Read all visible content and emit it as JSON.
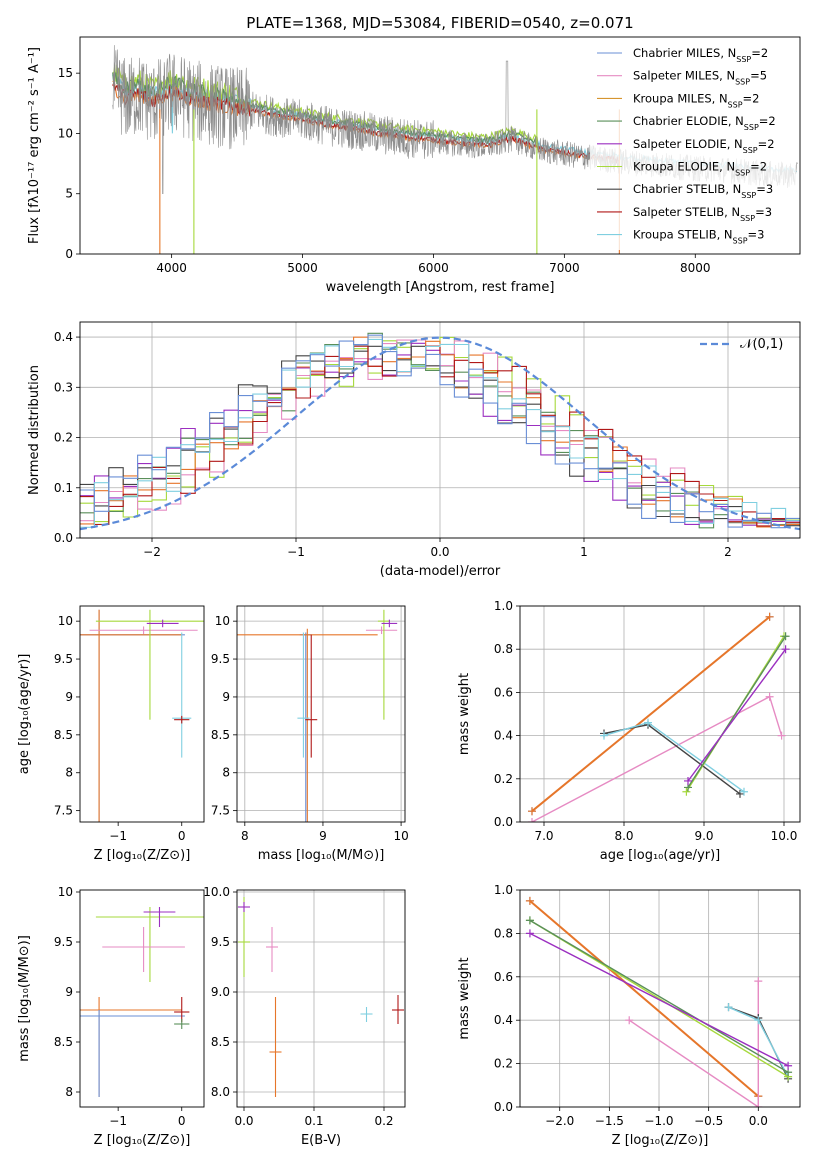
{
  "figure": {
    "title": "PLATE=1368, MJD=53084, FIBERID=0540, z=0.071"
  },
  "colors": {
    "chabrier_miles": "#6a8fd6",
    "salpeter_miles": "#e68bc3",
    "kroupa_miles": "#d69530",
    "chabrier_elodie": "#5a8f5a",
    "salpeter_elodie": "#9b2fc0",
    "kroupa_elodie": "#a6d93c",
    "chabrier_stelib": "#444444",
    "salpeter_stelib": "#b01818",
    "kroupa_stelib": "#80cfe0",
    "data_gray": "#8c8c8c",
    "orange_model": "#e6762a",
    "yellow_model": "#d8e866",
    "gaussian": "#5b8ad8"
  },
  "chart_data": [
    {
      "id": "spectrum",
      "type": "line",
      "title": "PLATE=1368, MJD=53084, FIBERID=0540, z=0.071",
      "xlabel": "wavelength [Angstrom, rest frame]",
      "ylabel": "Flux [fλ10⁻¹⁷ erg cm⁻² s⁻¹ A⁻¹]",
      "xlim": [
        3300,
        8800
      ],
      "ylim": [
        0,
        18
      ],
      "xticks": [
        4000,
        5000,
        6000,
        7000,
        8000
      ],
      "yticks": [
        0,
        5,
        10,
        15
      ],
      "legend_position": "top-right",
      "legend": [
        {
          "label": "Chabrier MILES, N",
          "sub": "SSP",
          "suffix": "=2",
          "color_key": "chabrier_miles"
        },
        {
          "label": "Salpeter MILES, N",
          "sub": "SSP",
          "suffix": "=5",
          "color_key": "salpeter_miles"
        },
        {
          "label": "Kroupa MILES, N",
          "sub": "SSP",
          "suffix": "=2",
          "color_key": "kroupa_miles"
        },
        {
          "label": "Chabrier ELODIE, N",
          "sub": "SSP",
          "suffix": "=2",
          "color_key": "chabrier_elodie"
        },
        {
          "label": "Salpeter ELODIE, N",
          "sub": "SSP",
          "suffix": "=2",
          "color_key": "salpeter_elodie"
        },
        {
          "label": "Kroupa ELODIE, N",
          "sub": "SSP",
          "suffix": "=2",
          "color_key": "kroupa_elodie"
        },
        {
          "label": "Chabrier STELIB, N",
          "sub": "SSP",
          "suffix": "=3",
          "color_key": "chabrier_stelib"
        },
        {
          "label": "Salpeter STELIB, N",
          "sub": "SSP",
          "suffix": "=3",
          "color_key": "salpeter_stelib"
        },
        {
          "label": "Kroupa STELIB, N",
          "sub": "SSP",
          "suffix": "=3",
          "color_key": "kroupa_stelib"
        }
      ],
      "continuum": {
        "x": [
          3550,
          3650,
          3750,
          3850,
          4000,
          4200,
          4400,
          4600,
          4800,
          5000,
          5200,
          5400,
          5600,
          5800,
          6000,
          6200,
          6400,
          6600,
          6800,
          7000,
          7200,
          7400,
          7600,
          7800,
          8000,
          8200,
          8400,
          8600,
          8800
        ],
        "y": [
          14.0,
          12.8,
          13.2,
          12.5,
          13.4,
          12.6,
          12.2,
          11.9,
          11.4,
          11.1,
          10.6,
          10.3,
          9.9,
          9.6,
          9.4,
          9.1,
          8.9,
          9.5,
          8.7,
          8.3,
          8.0,
          7.7,
          7.5,
          7.3,
          7.1,
          7.0,
          6.8,
          6.6,
          6.5
        ]
      }
    },
    {
      "id": "residuals",
      "type": "line",
      "xlabel": "(data-model)/error",
      "ylabel": "Normed distribution",
      "xlim": [
        -2.5,
        2.5
      ],
      "ylim": [
        0,
        0.43
      ],
      "xticks": [
        -2,
        -1,
        0,
        1,
        2
      ],
      "yticks": [
        0.0,
        0.1,
        0.2,
        0.3,
        0.4
      ],
      "legend_position": "top-right",
      "legend_label": "𝒩(0,1)",
      "gaussian": {
        "mu": 0,
        "sigma": 1
      },
      "bin_start": -2.5,
      "bin_width": 0.1
    },
    {
      "id": "age_vs_Z",
      "type": "scatter",
      "xlabel": "Z [log₁₀(Z/Z⊙)]",
      "ylabel": "age  [log₁₀(age/yr)]",
      "xlim": [
        -1.6,
        0.35
      ],
      "ylim": [
        7.35,
        10.2
      ],
      "xticks": [
        -1,
        0
      ],
      "yticks": [
        7.5,
        8.0,
        8.5,
        9.0,
        9.5,
        10.0
      ],
      "points": [
        {
          "x": -1.3,
          "y": 9.82,
          "xerr": 1.35,
          "ylo": 7.35,
          "yhi": 10.15,
          "color_key": "chabrier_miles"
        },
        {
          "x": -1.3,
          "y": 9.82,
          "xerr": 1.3,
          "ylo": 7.35,
          "yhi": 10.15,
          "color_key": "orange_model"
        },
        {
          "x": -0.6,
          "y": 9.88,
          "xerr": 0.85,
          "color_key": "salpeter_miles"
        },
        {
          "x": -0.5,
          "y": 10.0,
          "xerr": 0.85,
          "ylo": 8.7,
          "yhi": 10.15,
          "color_key": "kroupa_elodie"
        },
        {
          "x": -0.3,
          "y": 9.97,
          "xerr": 0.25,
          "color_key": "salpeter_elodie"
        },
        {
          "x": 0.0,
          "y": 8.72,
          "xerr": 0.15,
          "ylo": 8.2,
          "yhi": 9.85,
          "color_key": "kroupa_stelib"
        },
        {
          "x": 0.0,
          "y": 8.7,
          "xerr": 0.12,
          "color_key": "salpeter_stelib"
        }
      ]
    },
    {
      "id": "age_vs_mass",
      "type": "scatter",
      "xlabel": "mass [log₁₀(M/M⊙)]",
      "ylabel": "",
      "xlim": [
        7.9,
        10.05
      ],
      "ylim": [
        7.35,
        10.2
      ],
      "xticks": [
        8,
        9,
        10
      ],
      "yticks": [
        7.5,
        8.0,
        8.5,
        9.0,
        9.5,
        10.0
      ],
      "points": [
        {
          "x": 8.78,
          "y": 9.82,
          "ylo": 7.35,
          "yhi": 9.85,
          "color_key": "chabrier_miles"
        },
        {
          "x": 8.8,
          "y": 9.82,
          "xerr": 0.9,
          "ylo": 7.35,
          "yhi": 9.9,
          "color_key": "orange_model"
        },
        {
          "x": 8.75,
          "y": 8.72,
          "ylo": 8.2,
          "yhi": 9.85,
          "color_key": "kroupa_stelib"
        },
        {
          "x": 8.85,
          "y": 8.7,
          "ylo": 8.2,
          "yhi": 9.82,
          "color_key": "salpeter_stelib"
        },
        {
          "x": 9.75,
          "y": 9.88,
          "xerr": 0.2,
          "color_key": "salpeter_miles"
        },
        {
          "x": 9.78,
          "y": 10.0,
          "ylo": 8.7,
          "yhi": 10.15,
          "color_key": "kroupa_elodie"
        },
        {
          "x": 9.85,
          "y": 9.97,
          "xerr": 0.1,
          "color_key": "salpeter_elodie"
        }
      ]
    },
    {
      "id": "weight_vs_age",
      "type": "line",
      "xlabel": "age  [log₁₀(age/yr)]",
      "ylabel": "mass weight",
      "xlim": [
        6.7,
        10.2
      ],
      "ylim": [
        0,
        1.0
      ],
      "xticks": [
        7,
        8,
        9,
        10
      ],
      "yticks": [
        0.0,
        0.2,
        0.4,
        0.6,
        0.8,
        1.0
      ],
      "series": [
        {
          "color_key": "chabrier_miles",
          "x": [
            6.85,
            9.82
          ],
          "y": [
            0.05,
            0.95
          ]
        },
        {
          "color_key": "orange_model",
          "x": [
            6.85,
            9.82
          ],
          "y": [
            0.05,
            0.95
          ]
        },
        {
          "color_key": "salpeter_miles",
          "x": [
            6.85,
            9.82,
            9.97
          ],
          "y": [
            0.0,
            0.58,
            0.4
          ]
        },
        {
          "color_key": "chabrier_stelib",
          "x": [
            7.75,
            8.3,
            9.45
          ],
          "y": [
            0.41,
            0.45,
            0.13
          ]
        },
        {
          "color_key": "kroupa_stelib",
          "x": [
            7.75,
            8.3,
            9.5
          ],
          "y": [
            0.4,
            0.46,
            0.14
          ]
        },
        {
          "color_key": "kroupa_elodie",
          "x": [
            8.78,
            10.0
          ],
          "y": [
            0.14,
            0.86
          ]
        },
        {
          "color_key": "chabrier_elodie",
          "x": [
            8.8,
            10.02
          ],
          "y": [
            0.16,
            0.86
          ]
        },
        {
          "color_key": "salpeter_elodie",
          "x": [
            8.8,
            10.02
          ],
          "y": [
            0.19,
            0.8
          ]
        }
      ]
    },
    {
      "id": "mass_vs_Z",
      "type": "scatter",
      "xlabel": "Z [log₁₀(Z/Z⊙)]",
      "ylabel": "mass [log₁₀(M/M⊙)]",
      "xlim": [
        -1.6,
        0.35
      ],
      "ylim": [
        7.85,
        10.02
      ],
      "xticks": [
        -1,
        0
      ],
      "yticks": [
        8.0,
        8.5,
        9.0,
        9.5,
        10.0
      ],
      "points": [
        {
          "x": -0.5,
          "y": 9.75,
          "xerr": 0.85,
          "ylo": 9.1,
          "yhi": 9.85,
          "color_key": "kroupa_elodie"
        },
        {
          "x": -0.35,
          "y": 9.8,
          "xerr": 0.25,
          "ylo": 9.65,
          "yhi": 9.85,
          "color_key": "salpeter_elodie"
        },
        {
          "x": -0.6,
          "y": 9.45,
          "xerr": 0.65,
          "ylo": 9.2,
          "yhi": 9.65,
          "color_key": "salpeter_miles"
        },
        {
          "x": -1.3,
          "y": 8.82,
          "xerr": 1.3,
          "ylo": 7.95,
          "yhi": 8.95,
          "color_key": "orange_model"
        },
        {
          "x": -1.3,
          "y": 8.76,
          "xerr": 1.35,
          "ylo": 7.95,
          "yhi": 8.82,
          "color_key": "chabrier_miles"
        },
        {
          "x": 0.0,
          "y": 8.8,
          "xerr": 0.12,
          "ylo": 8.7,
          "yhi": 8.95,
          "color_key": "salpeter_stelib"
        },
        {
          "x": 0.0,
          "y": 8.68,
          "xerr": 0.12,
          "color_key": "chabrier_elodie"
        }
      ]
    },
    {
      "id": "mass_vs_ebv",
      "type": "scatter",
      "xlabel": "E(B-V)",
      "ylabel": "",
      "xlim": [
        -0.01,
        0.23
      ],
      "ylim": [
        7.85,
        10.02
      ],
      "xticks": [
        0.0,
        0.1,
        0.2
      ],
      "yticks": [
        8.0,
        8.5,
        9.0,
        9.5,
        10.0
      ],
      "points": [
        {
          "x": 0.0,
          "y": 9.5,
          "ylo": 9.15,
          "yhi": 9.95,
          "color_key": "kroupa_elodie"
        },
        {
          "x": 0.0,
          "y": 9.85,
          "ylo": 9.8,
          "yhi": 9.9,
          "color_key": "salpeter_elodie"
        },
        {
          "x": 0.04,
          "y": 9.45,
          "ylo": 9.2,
          "yhi": 9.65,
          "color_key": "salpeter_miles"
        },
        {
          "x": 0.045,
          "y": 8.4,
          "ylo": 7.95,
          "yhi": 8.95,
          "color_key": "orange_model"
        },
        {
          "x": 0.175,
          "y": 8.78,
          "ylo": 8.7,
          "yhi": 8.85,
          "color_key": "kroupa_stelib"
        },
        {
          "x": 0.22,
          "y": 8.82,
          "ylo": 8.68,
          "yhi": 8.97,
          "color_key": "salpeter_stelib"
        }
      ]
    },
    {
      "id": "weight_vs_Z",
      "type": "line",
      "xlabel": "Z [log₁₀(Z/Z⊙)]",
      "ylabel": "mass weight",
      "xlim": [
        -2.4,
        0.42
      ],
      "ylim": [
        0,
        1.0
      ],
      "xticks": [
        -2.0,
        -1.5,
        -1.0,
        -0.5,
        0.0
      ],
      "yticks": [
        0.0,
        0.2,
        0.4,
        0.6,
        0.8,
        1.0
      ],
      "series": [
        {
          "color_key": "chabrier_miles",
          "x": [
            -2.3,
            0.0
          ],
          "y": [
            0.95,
            0.05
          ]
        },
        {
          "color_key": "orange_model",
          "x": [
            -2.3,
            0.0
          ],
          "y": [
            0.95,
            0.05
          ]
        },
        {
          "color_key": "salpeter_miles",
          "x": [
            -1.3,
            0.0,
            0.0
          ],
          "y": [
            0.4,
            0.0,
            0.58
          ]
        },
        {
          "color_key": "chabrier_stelib",
          "x": [
            -0.3,
            0.0,
            0.3
          ],
          "y": [
            0.46,
            0.41,
            0.13
          ]
        },
        {
          "color_key": "kroupa_stelib",
          "x": [
            -0.3,
            0.0,
            0.3
          ],
          "y": [
            0.46,
            0.4,
            0.14
          ]
        },
        {
          "color_key": "kroupa_elodie",
          "x": [
            -2.3,
            0.3
          ],
          "y": [
            0.86,
            0.14
          ]
        },
        {
          "color_key": "chabrier_elodie",
          "x": [
            -2.3,
            0.3
          ],
          "y": [
            0.86,
            0.16
          ]
        },
        {
          "color_key": "salpeter_elodie",
          "x": [
            -2.3,
            0.3
          ],
          "y": [
            0.8,
            0.19
          ]
        }
      ]
    }
  ]
}
